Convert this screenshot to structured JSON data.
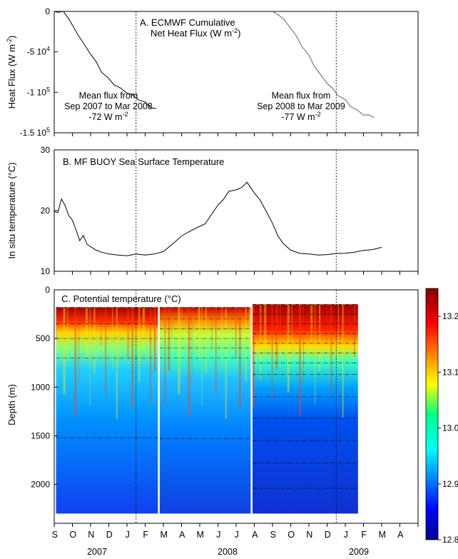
{
  "chart_data": [
    {
      "id": "A",
      "type": "line",
      "title": "A. ECMWF Cumulative",
      "title_line2": "Net Heat Flux (W m",
      "title_line2_sup": "-2",
      "title_line2_end": ")",
      "ylabel": "Heat Flux (W m",
      "ylabel_sup": "-2",
      "ylabel_end": ")",
      "ylim": [
        -150000,
        0
      ],
      "yticks": [
        {
          "value": 0,
          "label": "0",
          "sup": ""
        },
        {
          "value": -50000,
          "label": "-5 10",
          "sup": "4"
        },
        {
          "value": -100000,
          "label": "-1 10",
          "sup": "5"
        },
        {
          "value": -150000,
          "label": "-1.5 10",
          "sup": "5"
        }
      ],
      "annotations": [
        {
          "lines": [
            "Mean flux from",
            "Sep 2007 to Mar 2008"
          ],
          "value": "-72 W m",
          "sup": "-2"
        },
        {
          "lines": [
            "Mean flux from",
            "Sep 2008 to Mar 2009"
          ],
          "value": "-77 W m",
          "sup": "-2"
        }
      ],
      "series": [
        {
          "x": [
            0,
            0.2,
            0.5,
            0.8,
            1.0,
            1.3,
            1.6,
            2.0,
            2.3,
            2.6,
            3.0,
            3.3,
            3.6,
            4.0,
            4.3,
            4.6,
            5.0,
            5.3,
            5.6
          ],
          "y": [
            0,
            0,
            -1000,
            -8000,
            -18000,
            -28000,
            -40000,
            -52000,
            -63000,
            -74000,
            -84000,
            -90000,
            -95000,
            -100000,
            -104000,
            -108000,
            -113000,
            -118000,
            -121000
          ]
        },
        {
          "x": [
            12.0,
            12.3,
            12.6,
            13.0,
            13.3,
            13.6,
            14.0,
            14.3,
            14.6,
            15.0,
            15.3,
            15.6,
            16.0,
            16.3,
            16.6,
            17.0,
            17.3,
            17.6
          ],
          "y": [
            0,
            -3000,
            -10000,
            -20000,
            -31000,
            -42000,
            -55000,
            -67000,
            -78000,
            -88000,
            -96000,
            -103000,
            -110000,
            -117000,
            -122000,
            -127000,
            -129000,
            -130000
          ]
        }
      ]
    },
    {
      "id": "B",
      "type": "line",
      "title": "B.  MF BUOY Sea Surface Temperature",
      "ylabel": "In situ temperature (°C)",
      "ylim": [
        10,
        30
      ],
      "yticks": [
        10,
        20,
        30
      ],
      "series": [
        {
          "x": [
            0,
            0.2,
            0.4,
            0.6,
            0.8,
            1.0,
            1.2,
            1.4,
            1.6,
            1.8,
            2.0,
            2.3,
            2.6,
            3.0,
            3.5,
            4.0,
            4.5,
            5.0,
            5.5,
            6.0,
            6.5,
            7.0,
            7.5,
            8.0,
            8.3,
            8.6,
            9.0,
            9.3,
            9.6,
            10.0,
            10.3,
            10.6,
            11.0,
            11.3,
            11.6,
            12.0,
            12.3,
            12.6,
            13.0,
            13.5,
            14.0,
            14.5,
            15.0,
            15.5,
            16.0,
            16.5,
            17.0,
            17.5,
            18.0
          ],
          "y": [
            20,
            19.5,
            22,
            21,
            19,
            18.5,
            17,
            15,
            16,
            14.5,
            14,
            13.5,
            13.2,
            12.8,
            12.7,
            12.6,
            12.8,
            12.7,
            12.9,
            13.2,
            14.5,
            16,
            16.5,
            17.5,
            18,
            19,
            21,
            22,
            23,
            23.5,
            24,
            24.5,
            23,
            22,
            20,
            18,
            16,
            14.5,
            13.5,
            13,
            12.8,
            12.7,
            12.8,
            12.9,
            13,
            13.2,
            13.4,
            13.6,
            14
          ]
        }
      ]
    },
    {
      "id": "C",
      "type": "heatmap",
      "title": "C. Potential temperature (°C)",
      "ylabel": "Depth (m)",
      "ylim": [
        2400,
        0
      ],
      "yticks": [
        0,
        500,
        1000,
        1500,
        2000
      ],
      "colorbar": {
        "min": 12.8,
        "max": 13.25,
        "ticks": [
          12.8,
          12.9,
          13.0,
          13.1,
          13.2
        ]
      },
      "deployments": [
        {
          "x_start": 0.1,
          "x_end": 5.7,
          "depth_top": 180,
          "depth_bottom": 2300,
          "mooring_depths": [
            180,
            350,
            500,
            700,
            1520
          ]
        },
        {
          "x_start": 5.8,
          "x_end": 10.8,
          "depth_top": 180,
          "depth_bottom": 2300,
          "mooring_depths": [
            180,
            300,
            400,
            500,
            600,
            700,
            1530
          ]
        },
        {
          "x_start": 10.9,
          "x_end": 16.7,
          "depth_top": 150,
          "depth_bottom": 2300,
          "mooring_depths": [
            150,
            250,
            350,
            450,
            550,
            650,
            750,
            870,
            1100,
            1320,
            1550,
            1780,
            2040
          ]
        }
      ]
    }
  ],
  "x_axis": {
    "months": [
      "S",
      "O",
      "N",
      "D",
      "J",
      "F",
      "M",
      "A",
      "M",
      "J",
      "J",
      "A",
      "S",
      "O",
      "N",
      "D",
      "J",
      "F",
      "M",
      "A"
    ],
    "years": [
      "2007",
      "2008",
      "2009"
    ],
    "divider_x": [
      4.5,
      15.5
    ]
  }
}
